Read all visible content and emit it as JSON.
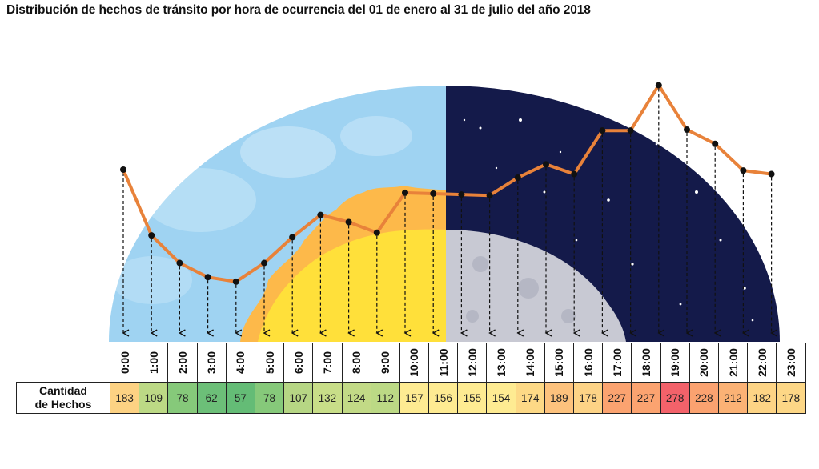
{
  "title": "Distribución de hechos de tránsito por hora de ocurrencia del 01 de enero al 31 de julio del año 2018",
  "row_label_line1": "Cantidad",
  "row_label_line2": "de Hechos",
  "colors": {
    "line": "#E8823A",
    "dot": "#111111",
    "sky_day": "#9FD3F2",
    "sky_night": "#141A4A",
    "sun": "#FFE03A",
    "flame": "#FDB94A",
    "moon": "#C8C9D3"
  },
  "chart_data": {
    "type": "line",
    "title": "Distribución de hechos de tránsito por hora de ocurrencia del 01 de enero al 31 de julio del año 2018",
    "xlabel": "",
    "ylabel": "Cantidad de Hechos",
    "categories": [
      "0:00",
      "1:00",
      "2:00",
      "3:00",
      "4:00",
      "5:00",
      "6:00",
      "7:00",
      "8:00",
      "9:00",
      "10:00",
      "11:00",
      "12:00",
      "13:00",
      "14:00",
      "15:00",
      "16:00",
      "17:00",
      "18:00",
      "19:00",
      "20:00",
      "21:00",
      "22:00",
      "23:00"
    ],
    "values": [
      183,
      109,
      78,
      62,
      57,
      78,
      107,
      132,
      124,
      112,
      157,
      156,
      155,
      154,
      174,
      189,
      178,
      227,
      227,
      278,
      228,
      212,
      182,
      178
    ],
    "cell_colors": [
      "#FDD283",
      "#BCD985",
      "#86C97A",
      "#6CBF78",
      "#64BC76",
      "#86C97A",
      "#B6D684",
      "#C8DE88",
      "#C2DA86",
      "#BCD985",
      "#FEEB92",
      "#FEEB92",
      "#FEEB92",
      "#FEEB92",
      "#FDD986",
      "#FDC27D",
      "#FDD386",
      "#FBA370",
      "#FBA370",
      "#F3626A",
      "#FBA270",
      "#FBB275",
      "#FDD485",
      "#FDD786"
    ]
  }
}
